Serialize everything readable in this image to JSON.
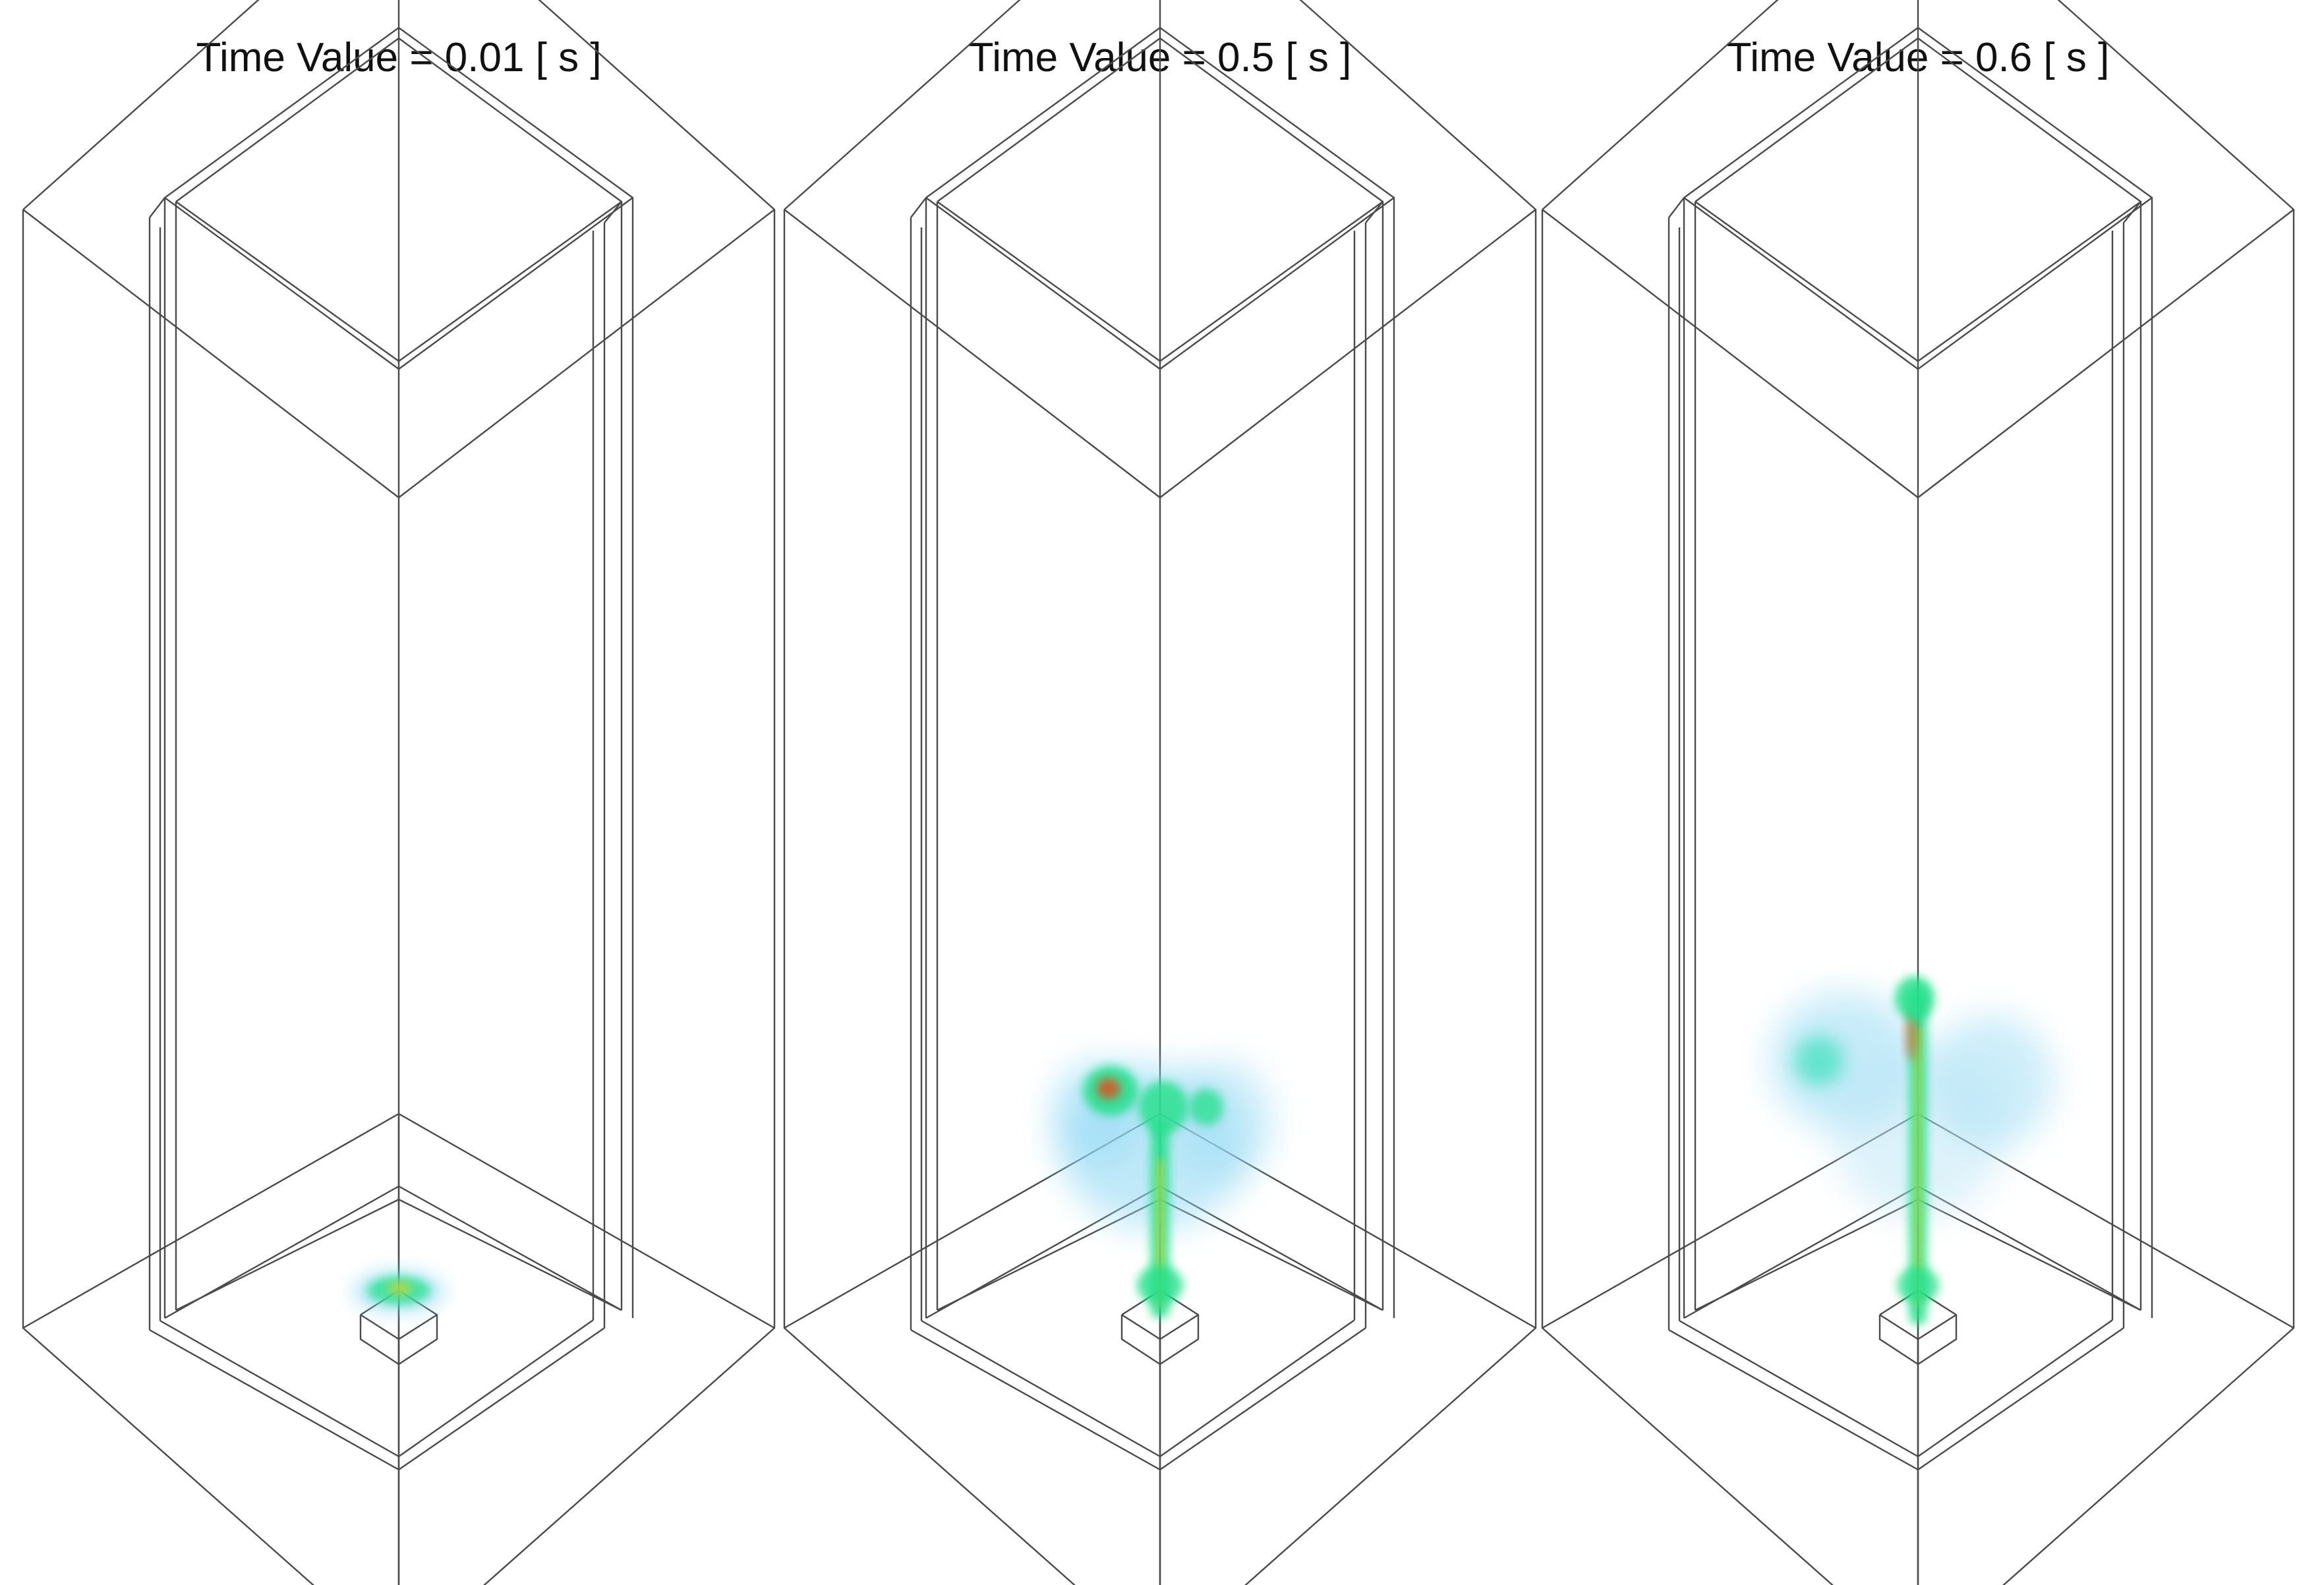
{
  "figure": {
    "panels": [
      {
        "title": "Time Value = 0.01 [ s ]",
        "time_s": 0.01
      },
      {
        "title": "Time Value = 0.5 [ s ]",
        "time_s": 0.5
      },
      {
        "title": "Time Value = 0.6 [ s ]",
        "time_s": 0.6
      }
    ],
    "colors": {
      "background": "#ffffff",
      "wireframe": "#4a4a4a",
      "text": "#111111",
      "plume_low": "#7fd6f2",
      "plume_mid": "#21e08a",
      "plume_high": "#e8d21a",
      "plume_peak": "#e0501e"
    }
  }
}
